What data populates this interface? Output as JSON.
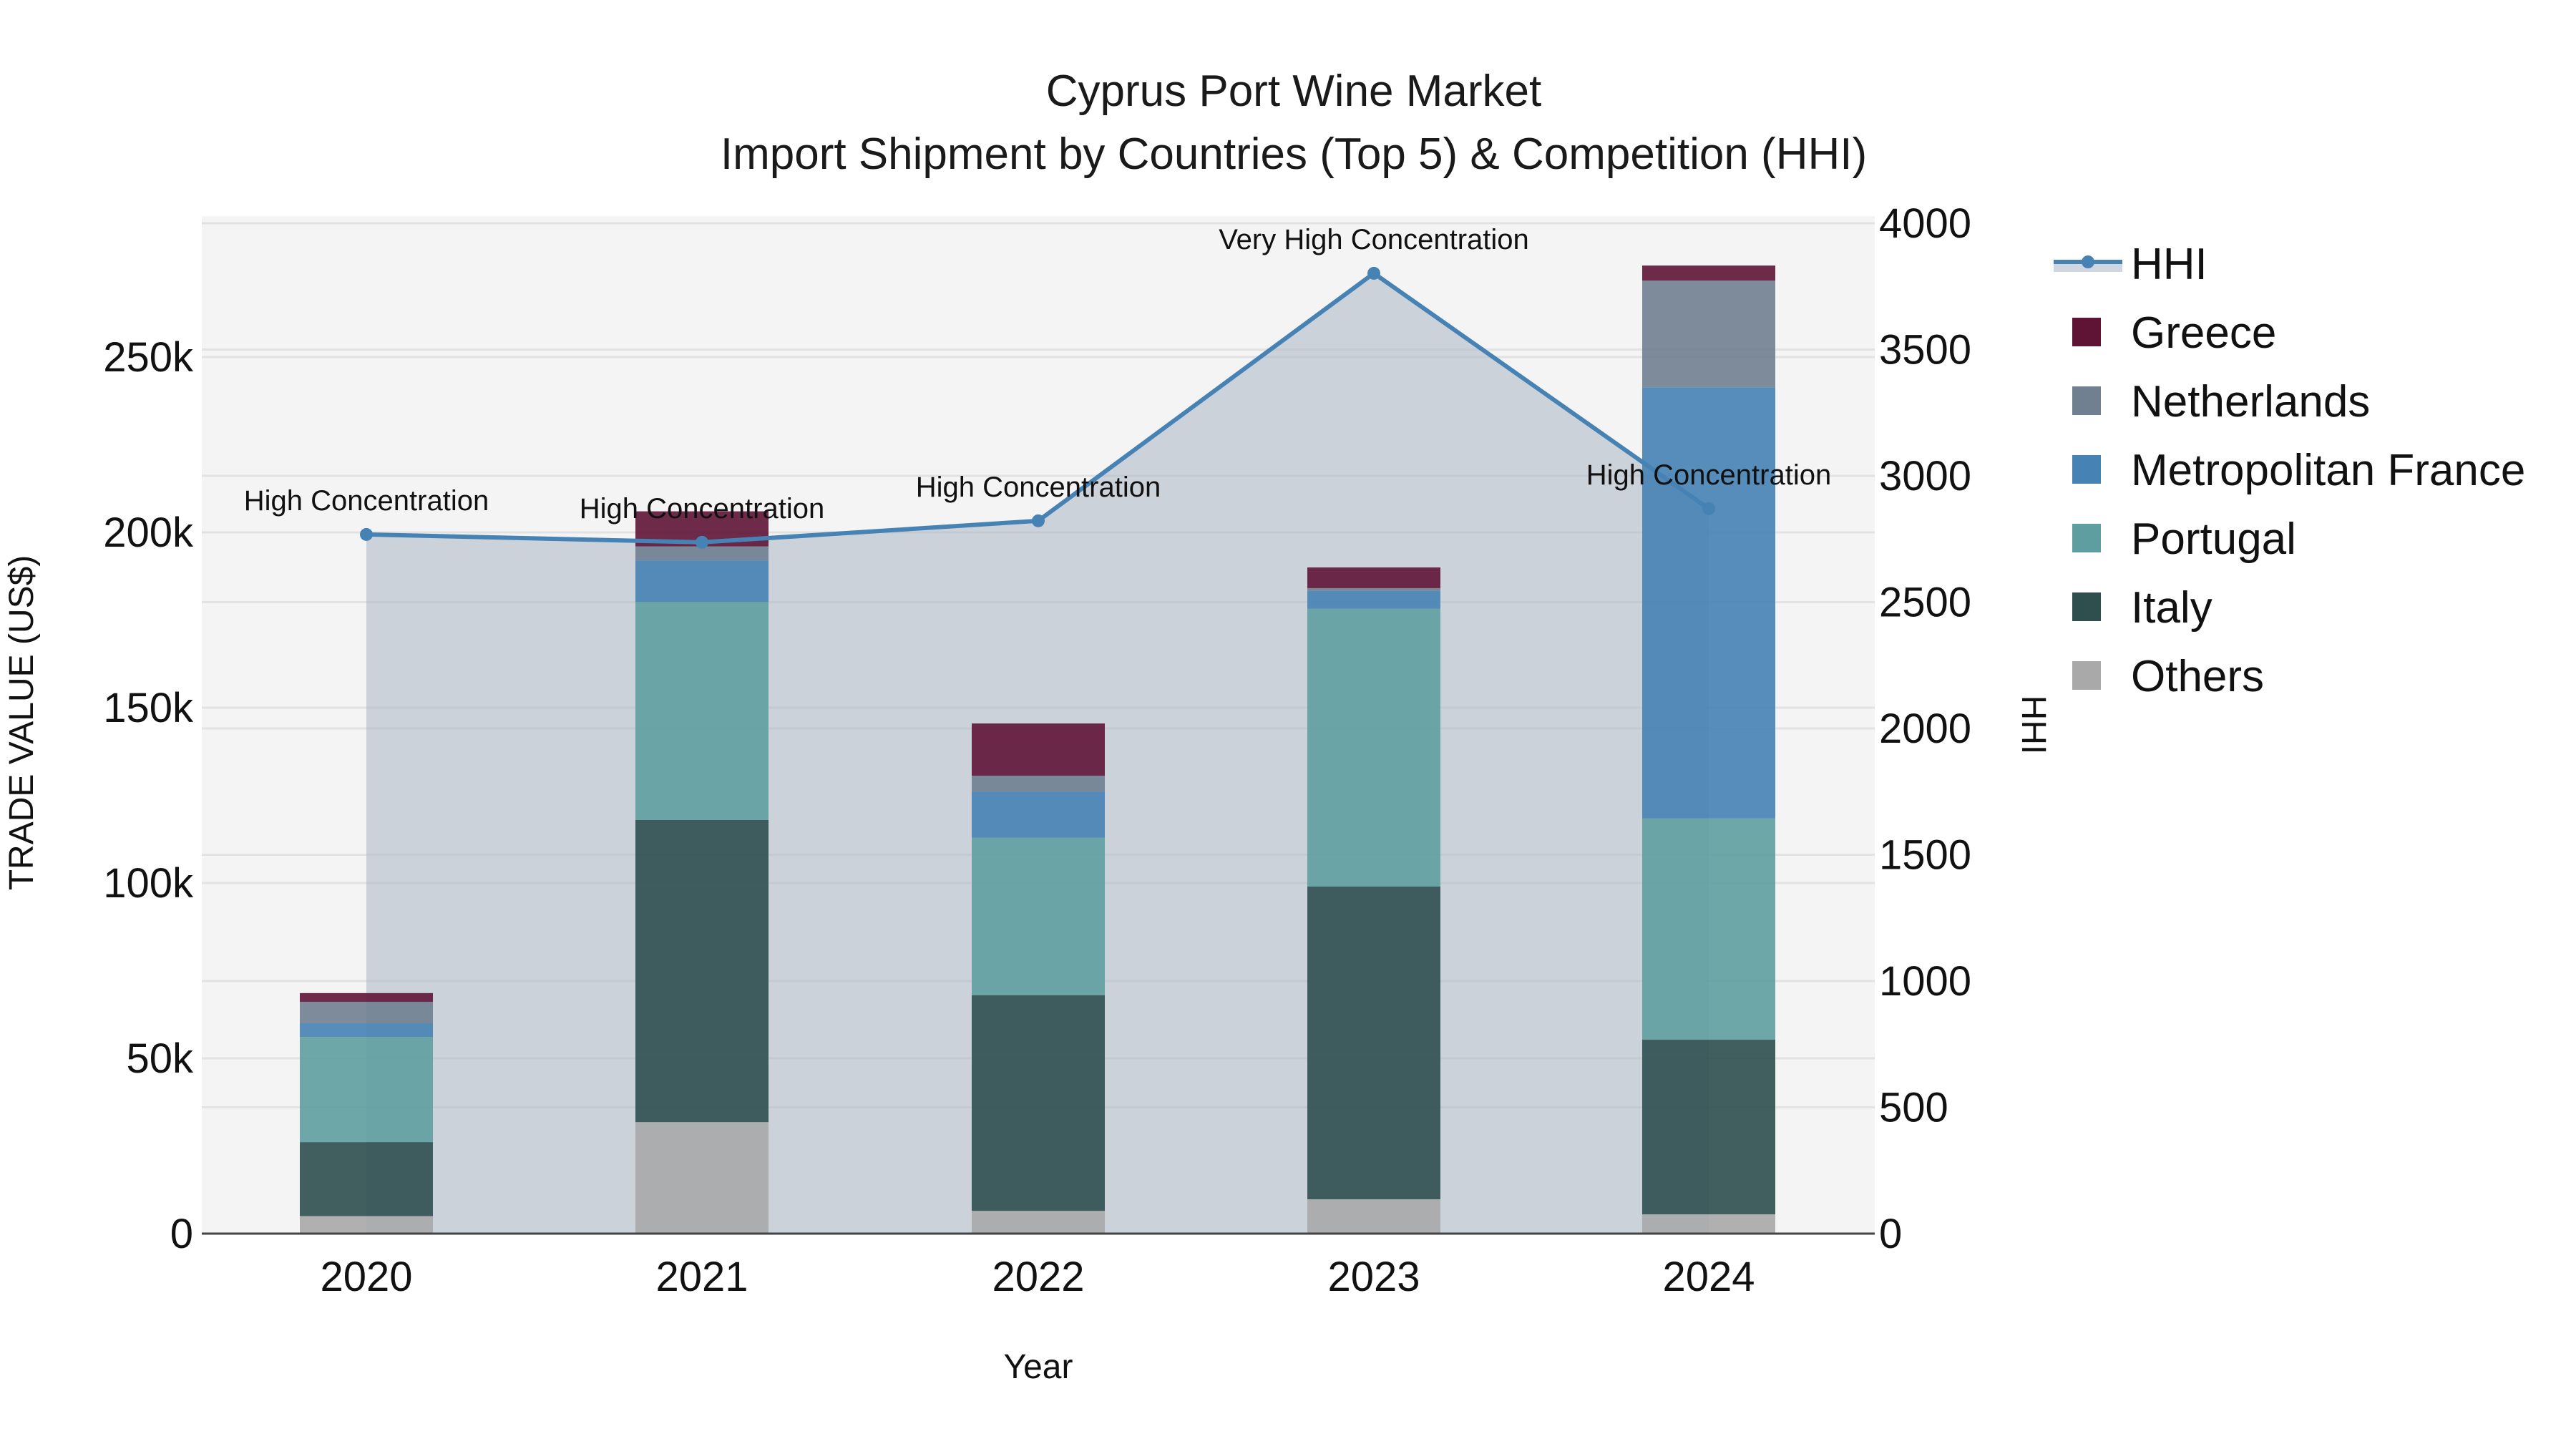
{
  "title": {
    "line1": "Cyprus Port Wine Market",
    "line2": "Import Shipment by Countries (Top 5) & Competition (HHI)"
  },
  "axes": {
    "x_title": "Year",
    "y_left_title": "TRADE VALUE (US$)",
    "y_right_title": "HHI",
    "y_left_ticks": [
      {
        "value": 0,
        "label": "0"
      },
      {
        "value": 50000,
        "label": "50k"
      },
      {
        "value": 100000,
        "label": "100k"
      },
      {
        "value": 150000,
        "label": "150k"
      },
      {
        "value": 200000,
        "label": "200k"
      },
      {
        "value": 250000,
        "label": "250k"
      }
    ],
    "y_right_ticks": [
      {
        "value": 0,
        "label": "0"
      },
      {
        "value": 500,
        "label": "500"
      },
      {
        "value": 1000,
        "label": "1000"
      },
      {
        "value": 1500,
        "label": "1500"
      },
      {
        "value": 2000,
        "label": "2000"
      },
      {
        "value": 2500,
        "label": "2500"
      },
      {
        "value": 3000,
        "label": "3000"
      },
      {
        "value": 3500,
        "label": "3500"
      },
      {
        "value": 4000,
        "label": "4000"
      }
    ]
  },
  "legend": [
    {
      "name": "HHI",
      "type": "line",
      "color": "#4682b4"
    },
    {
      "name": "Greece",
      "type": "bar",
      "color": "#5f1436"
    },
    {
      "name": "Netherlands",
      "type": "bar",
      "color": "#708090"
    },
    {
      "name": "Metropolitan France",
      "type": "bar",
      "color": "#4682b4"
    },
    {
      "name": "Portugal",
      "type": "bar",
      "color": "#5f9ea0"
    },
    {
      "name": "Italy",
      "type": "bar",
      "color": "#2f4f4f"
    },
    {
      "name": "Others",
      "type": "bar",
      "color": "#a9a9a9"
    }
  ],
  "colors": {
    "plot_bg": "#f4f4f4",
    "grid": "#e2e2e2",
    "hhi_line": "#4682b4",
    "hhi_fill": "rgba(176,186,200,0.6)"
  },
  "chart_data": {
    "type": "bar",
    "stacked": true,
    "title": "Cyprus Port Wine Market — Import Shipment by Countries (Top 5) & Competition (HHI)",
    "xlabel": "Year",
    "ylabel": "TRADE VALUE (US$)",
    "y2label": "HHI",
    "categories": [
      "2020",
      "2021",
      "2022",
      "2023",
      "2024"
    ],
    "ylim": [
      0,
      290000
    ],
    "y2lim": [
      0,
      4028
    ],
    "grid": true,
    "legend_position": "right",
    "series": [
      {
        "name": "Others",
        "color": "#a9a9a9",
        "values": [
          5000,
          31800,
          6500,
          9800,
          5500
        ]
      },
      {
        "name": "Italy",
        "color": "#2f4f4f",
        "values": [
          21100,
          86200,
          61500,
          89200,
          49800
        ]
      },
      {
        "name": "Portugal",
        "color": "#5f9ea0",
        "values": [
          30000,
          62200,
          44900,
          79200,
          63100
        ]
      },
      {
        "name": "Metropolitan France",
        "color": "#4682b4",
        "values": [
          3900,
          11800,
          13200,
          5100,
          123000
        ]
      },
      {
        "name": "Netherlands",
        "color": "#708090",
        "values": [
          6100,
          4000,
          4500,
          800,
          30400
        ]
      },
      {
        "name": "Greece",
        "color": "#5f1436",
        "values": [
          2500,
          10000,
          14900,
          5900,
          4300
        ]
      }
    ],
    "line_series": {
      "name": "HHI",
      "axis": "right",
      "color": "#4682b4",
      "fill": "tozeroy",
      "values": [
        2768,
        2737,
        2822,
        3802,
        2870
      ],
      "annotations": [
        "High Concentration",
        "High Concentration",
        "High Concentration",
        "Very High Concentration",
        "High Concentration"
      ]
    }
  }
}
